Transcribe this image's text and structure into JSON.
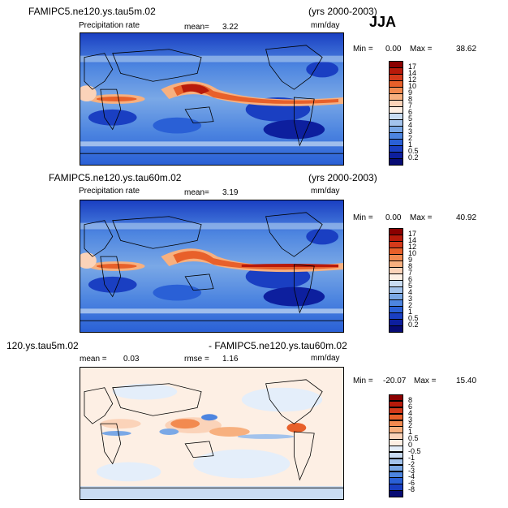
{
  "header": {
    "season": "JJA"
  },
  "panels": [
    {
      "id": "top",
      "case_name": "FAMIPC5.ne120.ys.tau5m.02",
      "years": "(yrs 2000-2003)",
      "variable": "Precipitation rate",
      "mean_label": "mean=",
      "mean_value": "3.22",
      "units": "mm/day",
      "min_label": "Min =",
      "min_value": "0.00",
      "max_label": "Max =",
      "max_value": "38.62",
      "colorbar_levels": [
        "17",
        "14",
        "12",
        "10",
        "9",
        "8",
        "7",
        "6",
        "5",
        "4",
        "3",
        "2",
        "1",
        "0.5",
        "0.2"
      ]
    },
    {
      "id": "middle",
      "case_name": "FAMIPC5.ne120.ys.tau60m.02",
      "years": "(yrs 2000-2003)",
      "variable": "Precipitation rate",
      "mean_label": "mean=",
      "mean_value": "3.19",
      "units": "mm/day",
      "min_label": "Min =",
      "min_value": "0.00",
      "max_label": "Max =",
      "max_value": "40.92",
      "colorbar_levels": [
        "17",
        "14",
        "12",
        "10",
        "9",
        "8",
        "7",
        "6",
        "5",
        "4",
        "3",
        "2",
        "1",
        "0.5",
        "0.2"
      ]
    },
    {
      "id": "bottom",
      "case_left": "120.ys.tau5m.02",
      "case_right": "- FAMIPC5.ne120.ys.tau60m.02",
      "mean_label": "mean =",
      "mean_value": "0.03",
      "rmse_label": "rmse =",
      "rmse_value": "1.16",
      "units": "mm/day",
      "min_label": "Min =",
      "min_value": "-20.07",
      "max_label": "Max =",
      "max_value": "15.40",
      "colorbar_levels": [
        "8",
        "6",
        "4",
        "3",
        "2",
        "1",
        "0.5",
        "0",
        "-0.5",
        "-1",
        "-2",
        "-3",
        "-4",
        "-6",
        "-8"
      ]
    }
  ],
  "colors": {
    "precip_scale": [
      "#8b0000",
      "#b81a0a",
      "#d43a1a",
      "#e8602a",
      "#f28a50",
      "#f7b07f",
      "#fbd3b9",
      "#fdefe4",
      "#c9dcf2",
      "#a3c3ec",
      "#7aa8e6",
      "#4d85e0",
      "#2a60d6",
      "#1a3fc2",
      "#0d1f9e",
      "#070b74"
    ],
    "diff_scale": [
      "#8b0000",
      "#b81a0a",
      "#d43a1a",
      "#e8602a",
      "#f28a50",
      "#f7b07f",
      "#fbd3b9",
      "#fdefe4",
      "#e4eefa",
      "#c9dcf2",
      "#a3c3ec",
      "#7aa8e6",
      "#4d85e0",
      "#2a60d6",
      "#1a3fc2",
      "#070b74"
    ]
  }
}
